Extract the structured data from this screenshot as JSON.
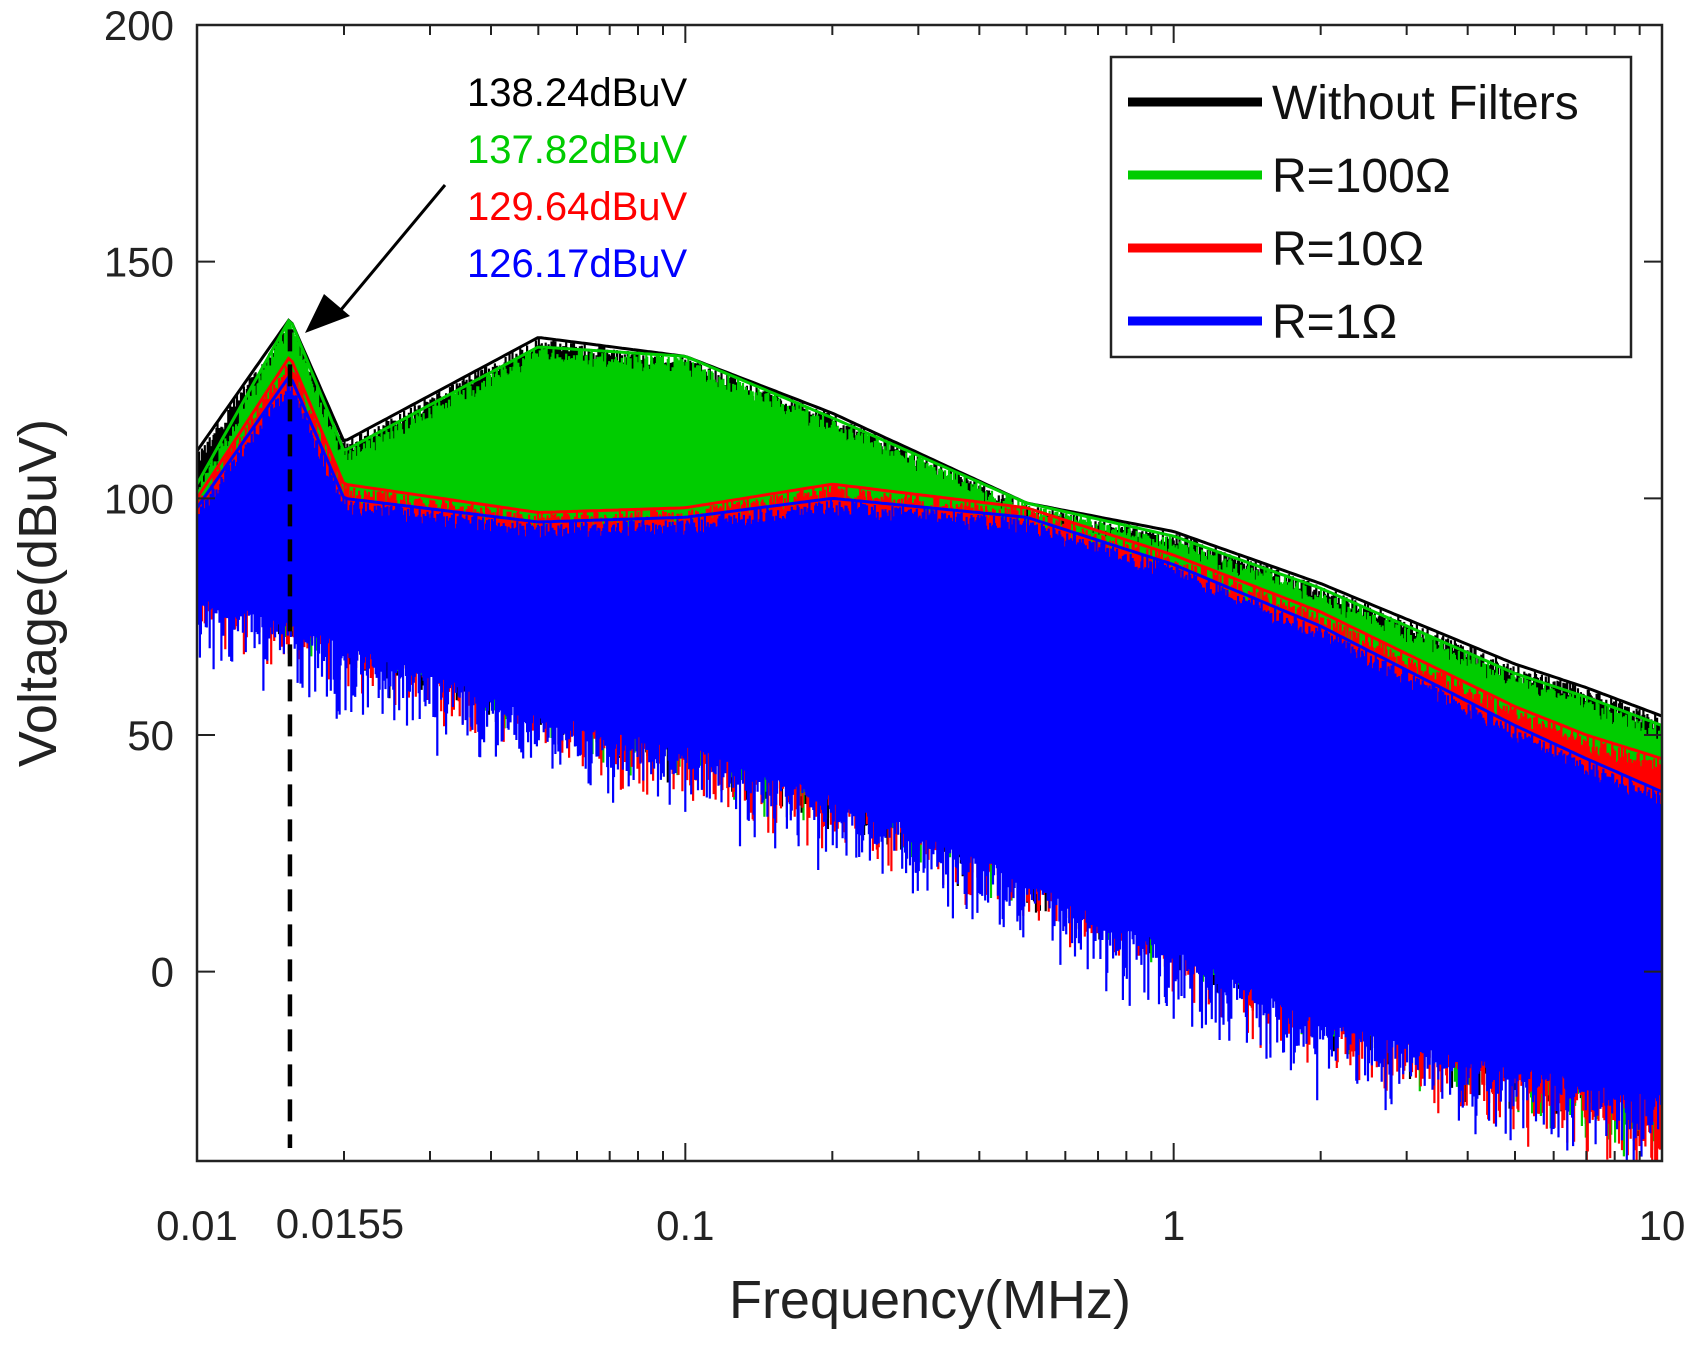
{
  "chart_data": {
    "type": "line",
    "title": "",
    "xlabel": "Frequency(MHz)",
    "ylabel": "Voltage(dBuV)",
    "x_scale": "log",
    "xlim": [
      0.01,
      10
    ],
    "ylim": [
      -40,
      200
    ],
    "xticks": [
      0.01,
      0.1,
      1,
      10
    ],
    "xtick_labels": [
      "0.01",
      "0.1",
      "1",
      "10"
    ],
    "yticks": [
      0,
      50,
      100,
      150,
      200
    ],
    "ytick_labels": [
      "0",
      "50",
      "100",
      "150",
      "200"
    ],
    "grid": false,
    "legend_position": "top-right",
    "fundamental_frequency": 0.0155,
    "fundamental_label": "0.0155",
    "series": [
      {
        "name": "Without Filters",
        "color": "#000000",
        "peak": 138.24,
        "envelope_x": [
          0.01,
          0.0155,
          0.02,
          0.05,
          0.1,
          0.2,
          0.5,
          1,
          2,
          5,
          7,
          10
        ],
        "envelope_y": [
          110,
          138,
          112,
          134,
          130,
          118,
          99,
          93,
          82,
          65,
          60,
          54
        ],
        "floor_x": [
          0.01,
          0.02,
          0.05,
          0.1,
          0.2,
          0.5,
          1,
          2,
          5,
          10
        ],
        "floor_y": [
          90,
          78,
          65,
          55,
          45,
          30,
          15,
          0,
          -15,
          -20
        ]
      },
      {
        "name": "R=100Ω",
        "color": "#00cc00",
        "peak": 137.82,
        "envelope_x": [
          0.01,
          0.0155,
          0.02,
          0.05,
          0.1,
          0.2,
          0.5,
          1,
          2,
          5,
          7,
          10
        ],
        "envelope_y": [
          103,
          138,
          110,
          132,
          130,
          117,
          99,
          92,
          81,
          63,
          58,
          52
        ],
        "floor_x": [
          0.01,
          0.02,
          0.05,
          0.1,
          0.2,
          0.5,
          1,
          2,
          5,
          10
        ],
        "floor_y": [
          92,
          80,
          65,
          55,
          45,
          30,
          15,
          0,
          -15,
          -25
        ]
      },
      {
        "name": "R=10Ω",
        "color": "#ff0000",
        "peak": 129.64,
        "envelope_x": [
          0.01,
          0.0155,
          0.02,
          0.05,
          0.1,
          0.2,
          0.5,
          1,
          2,
          5,
          7,
          10
        ],
        "envelope_y": [
          100,
          130,
          103,
          97,
          98,
          103,
          98,
          88,
          76,
          56,
          50,
          45
        ],
        "floor_x": [
          0.01,
          0.02,
          0.05,
          0.1,
          0.2,
          0.5,
          1,
          2,
          5,
          10
        ],
        "floor_y": [
          85,
          75,
          60,
          50,
          40,
          25,
          10,
          -5,
          -20,
          -30
        ]
      },
      {
        "name": "R=1Ω",
        "color": "#0000ff",
        "peak": 126.17,
        "envelope_x": [
          0.01,
          0.0155,
          0.02,
          0.05,
          0.1,
          0.2,
          0.5,
          1,
          2,
          5,
          7,
          10
        ],
        "envelope_y": [
          98,
          126,
          100,
          95,
          96,
          100,
          96,
          86,
          73,
          52,
          45,
          38
        ],
        "floor_x": [
          0.01,
          0.02,
          0.05,
          0.1,
          0.2,
          0.5,
          1,
          2,
          5,
          10
        ],
        "floor_y": [
          80,
          70,
          55,
          48,
          38,
          20,
          5,
          -10,
          -20,
          -25
        ]
      }
    ],
    "annotations": [
      {
        "text": "138.24dBuV",
        "color": "#000000"
      },
      {
        "text": "137.82dBuV",
        "color": "#00cc00"
      },
      {
        "text": "129.64dBuV",
        "color": "#ff0000"
      },
      {
        "text": "126.17dBuV",
        "color": "#0000ff"
      }
    ]
  }
}
